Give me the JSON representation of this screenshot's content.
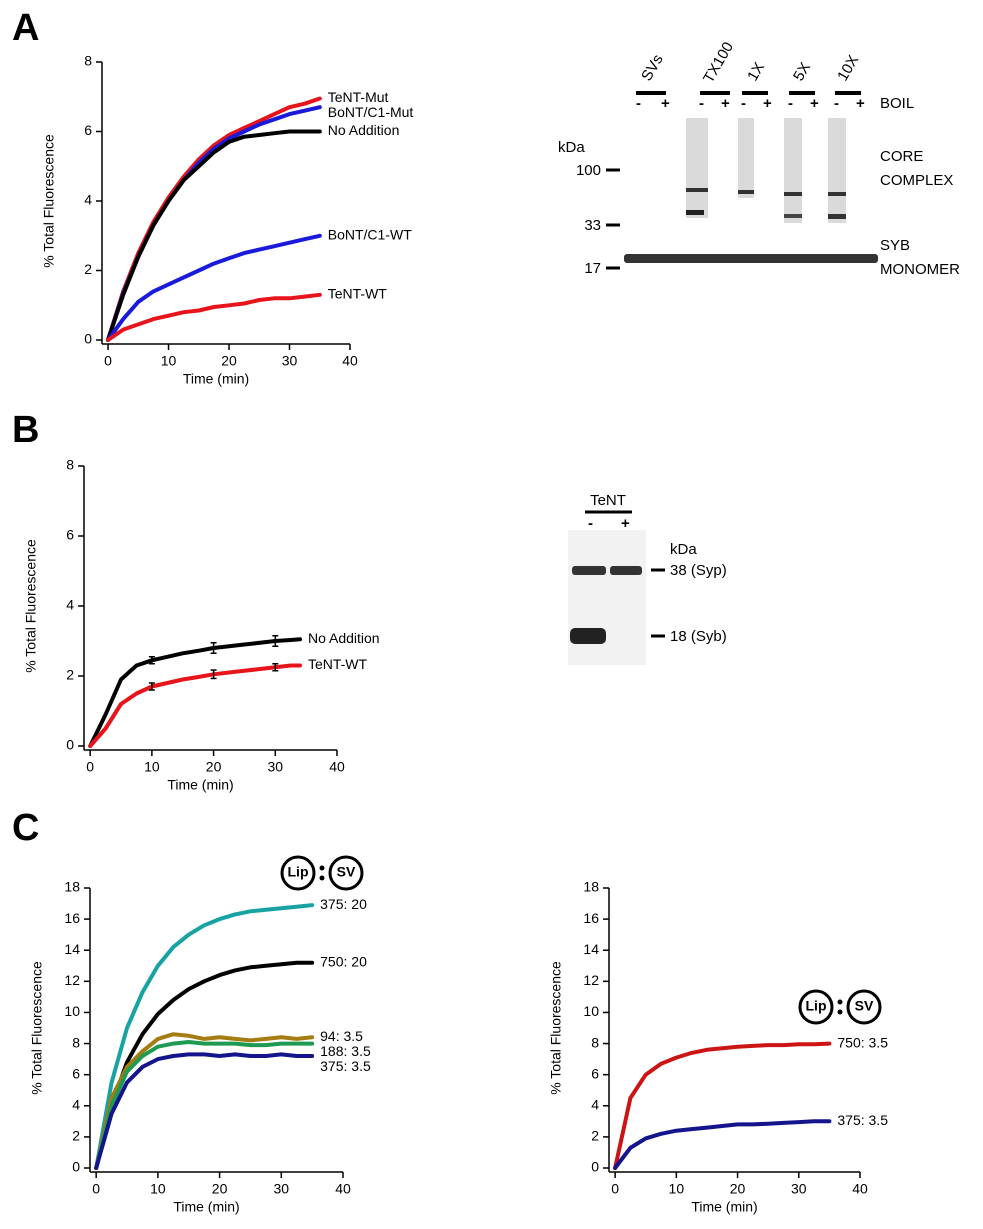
{
  "panels": [
    "A",
    "B",
    "C"
  ],
  "chart_data": [
    {
      "type": "line",
      "xlabel": "Time (min)",
      "ylabel": "% Total Fluorescence",
      "xlim": [
        -1,
        40
      ],
      "xticks": [
        0,
        10,
        20,
        30,
        40
      ],
      "ylim": [
        0,
        8
      ],
      "yticks": [
        0,
        2,
        4,
        6,
        8
      ],
      "x": [
        0,
        2.5,
        5,
        7.5,
        10,
        12.5,
        15,
        17.5,
        20,
        22.5,
        25,
        27.5,
        30,
        32.5,
        35
      ],
      "series": [
        {
          "name": "TeNT-Mut",
          "color": "#e8141b",
          "values": [
            0,
            1.4,
            2.5,
            3.4,
            4.1,
            4.7,
            5.2,
            5.6,
            5.9,
            6.1,
            6.3,
            6.5,
            6.7,
            6.8,
            6.95
          ]
        },
        {
          "name": "BoNT/C1-Mut",
          "color": "#1a1adb",
          "values": [
            0,
            1.35,
            2.4,
            3.3,
            4.0,
            4.6,
            5.1,
            5.5,
            5.8,
            6.0,
            6.2,
            6.35,
            6.5,
            6.6,
            6.7
          ]
        },
        {
          "name": "No Addition",
          "color": "#000000",
          "values": [
            0,
            1.3,
            2.4,
            3.3,
            4.0,
            4.6,
            5.0,
            5.4,
            5.7,
            5.85,
            5.9,
            5.95,
            6.0,
            6.0,
            6.0
          ]
        },
        {
          "name": "BoNT/C1-WT",
          "color": "#1a1adb",
          "values": [
            0,
            0.6,
            1.1,
            1.4,
            1.6,
            1.8,
            2.0,
            2.2,
            2.35,
            2.5,
            2.6,
            2.7,
            2.8,
            2.9,
            3.0
          ]
        },
        {
          "name": "TeNT-WT",
          "color": "#e8141b",
          "values": [
            0,
            0.3,
            0.45,
            0.6,
            0.7,
            0.8,
            0.85,
            0.95,
            1.0,
            1.05,
            1.15,
            1.2,
            1.2,
            1.25,
            1.3
          ]
        }
      ]
    },
    {
      "type": "line",
      "xlabel": "Time (min)",
      "ylabel": "% Total Fluorescence",
      "xlim": [
        -1,
        40
      ],
      "xticks": [
        0,
        10,
        20,
        30,
        40
      ],
      "ylim": [
        0,
        8
      ],
      "yticks": [
        0,
        2,
        4,
        6,
        8
      ],
      "x": [
        0,
        2.5,
        5,
        7.5,
        10,
        12.5,
        15,
        17.5,
        20,
        22.5,
        25,
        27.5,
        30,
        32.5,
        34
      ],
      "series": [
        {
          "name": "No Addition",
          "color": "#000000",
          "values": [
            0,
            0.9,
            1.9,
            2.3,
            2.45,
            2.55,
            2.65,
            2.72,
            2.8,
            2.85,
            2.9,
            2.95,
            3.0,
            3.03,
            3.05
          ],
          "errors": [
            null,
            null,
            null,
            null,
            0.1,
            null,
            null,
            null,
            0.15,
            null,
            null,
            null,
            0.15,
            null,
            null
          ]
        },
        {
          "name": "TeNT-WT",
          "color": "#e8141b",
          "values": [
            0,
            0.5,
            1.2,
            1.5,
            1.7,
            1.8,
            1.9,
            1.97,
            2.05,
            2.1,
            2.15,
            2.2,
            2.25,
            2.3,
            2.3
          ],
          "errors": [
            null,
            null,
            null,
            null,
            0.1,
            null,
            null,
            null,
            0.12,
            null,
            null,
            null,
            0.1,
            null,
            null
          ]
        }
      ]
    },
    {
      "type": "line",
      "xlabel": "Time (min)",
      "ylabel": "% Total Fluorescence",
      "key": [
        "Lip",
        "SV"
      ],
      "xlim": [
        -1,
        40
      ],
      "xticks": [
        0,
        10,
        20,
        30,
        40
      ],
      "ylim": [
        0,
        18
      ],
      "yticks": [
        0,
        2,
        4,
        6,
        8,
        10,
        12,
        14,
        16,
        18
      ],
      "x": [
        0,
        2.5,
        5,
        7.5,
        10,
        12.5,
        15,
        17.5,
        20,
        22.5,
        25,
        27.5,
        30,
        32.5,
        35
      ],
      "series": [
        {
          "name": "375: 20",
          "color": "#17a3a3",
          "values": [
            0,
            5.5,
            9,
            11.3,
            13,
            14.2,
            15.0,
            15.6,
            16.0,
            16.3,
            16.5,
            16.6,
            16.7,
            16.8,
            16.9
          ]
        },
        {
          "name": "750: 20",
          "color": "#000000",
          "values": [
            0,
            4,
            6.8,
            8.6,
            9.9,
            10.8,
            11.5,
            12.0,
            12.4,
            12.7,
            12.9,
            13.0,
            13.1,
            13.2,
            13.2
          ]
        },
        {
          "name": "94: 3.5",
          "color": "#a57c12",
          "values": [
            0,
            4.5,
            6.5,
            7.5,
            8.3,
            8.6,
            8.5,
            8.3,
            8.4,
            8.3,
            8.2,
            8.3,
            8.4,
            8.3,
            8.4
          ]
        },
        {
          "name": "188: 3.5",
          "color": "#1f9a52",
          "values": [
            0,
            4,
            6.2,
            7.2,
            7.8,
            8.0,
            8.1,
            8.0,
            8.0,
            8.0,
            7.9,
            7.9,
            8.0,
            8.0,
            8.0
          ]
        },
        {
          "name": "375: 3.5",
          "color": "#14148c",
          "values": [
            0,
            3.5,
            5.5,
            6.5,
            7.0,
            7.2,
            7.3,
            7.3,
            7.2,
            7.3,
            7.2,
            7.2,
            7.3,
            7.2,
            7.2
          ]
        }
      ]
    },
    {
      "type": "line",
      "xlabel": "Time (min)",
      "ylabel": "% Total Fluorescence",
      "key": [
        "Lip",
        "SV"
      ],
      "xlim": [
        -1,
        40
      ],
      "xticks": [
        0,
        10,
        20,
        30,
        40
      ],
      "ylim": [
        0,
        18
      ],
      "yticks": [
        0,
        2,
        4,
        6,
        8,
        10,
        12,
        14,
        16,
        18
      ],
      "x": [
        0,
        2.5,
        5,
        7.5,
        10,
        12.5,
        15,
        17.5,
        20,
        22.5,
        25,
        27.5,
        30,
        32.5,
        35
      ],
      "series": [
        {
          "name": "750: 3.5",
          "color": "#cc1414",
          "values": [
            0,
            4.5,
            6.0,
            6.7,
            7.1,
            7.4,
            7.6,
            7.7,
            7.8,
            7.85,
            7.9,
            7.9,
            7.95,
            7.95,
            8.0
          ]
        },
        {
          "name": "375: 3.5",
          "color": "#14148c",
          "values": [
            0,
            1.3,
            1.9,
            2.2,
            2.4,
            2.5,
            2.6,
            2.7,
            2.8,
            2.8,
            2.85,
            2.9,
            2.95,
            3.0,
            3.0
          ]
        }
      ]
    }
  ],
  "blots": [
    {
      "lanes": [
        "SVs",
        "TX100",
        "1X",
        "5X",
        "10X"
      ],
      "signs": [
        "-",
        "+"
      ],
      "treatment": "BOIL",
      "unit": "kDa",
      "markers": [
        100,
        33,
        17
      ],
      "labels": [
        "CORE",
        "COMPLEX",
        "SYB",
        "MONOMER"
      ]
    },
    {
      "lanes": [
        "TeNT"
      ],
      "signs": [
        "-",
        "+"
      ],
      "unit": "kDa",
      "markers": [
        "38 (Syp)",
        "18 (Syb)"
      ]
    }
  ]
}
